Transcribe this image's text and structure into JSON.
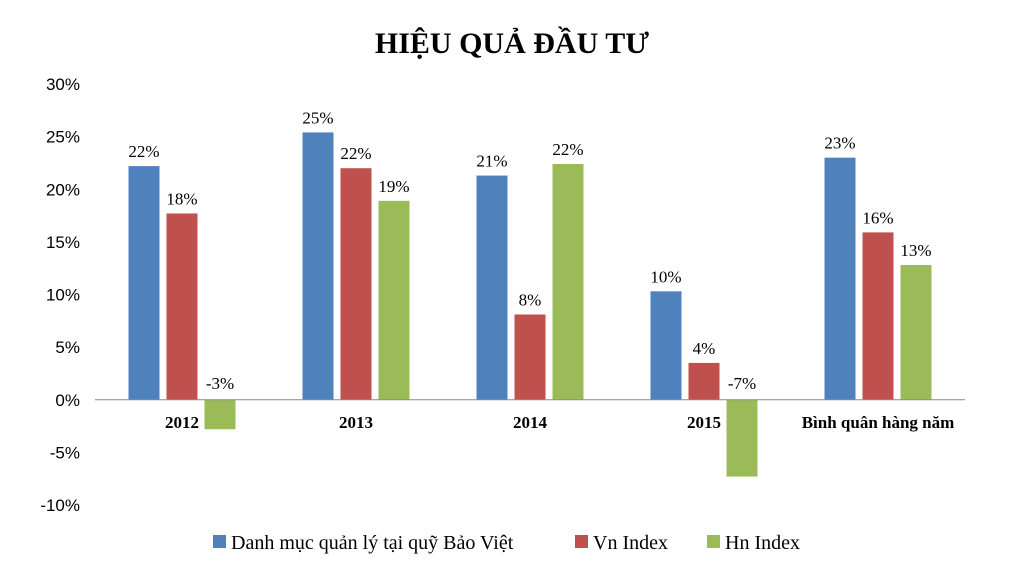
{
  "chart_data": {
    "type": "bar",
    "title": "HIỆU QUẢ ĐẦU TƯ",
    "categories": [
      "2012",
      "2013",
      "2014",
      "2015",
      "Bình quân hàng năm"
    ],
    "series": [
      {
        "name": "Danh mục quản lý tại quỹ Bảo Việt",
        "color": "#4F81BD",
        "values": [
          22.2,
          25.4,
          21.3,
          10.3,
          23.0
        ],
        "labels": [
          "22%",
          "25%",
          "21%",
          "10%",
          "23%"
        ]
      },
      {
        "name": "Vn Index",
        "color": "#C0504D",
        "values": [
          17.7,
          22.0,
          8.1,
          3.5,
          15.9
        ],
        "labels": [
          "18%",
          "22%",
          "8%",
          "4%",
          "16%"
        ]
      },
      {
        "name": "Hn Index",
        "color": "#9BBB59",
        "values": [
          -2.8,
          18.9,
          22.4,
          -7.3,
          12.8
        ],
        "labels": [
          "-3%",
          "19%",
          "22%",
          "-7%",
          "13%"
        ]
      }
    ],
    "ylim": [
      -10,
      30
    ],
    "yticks": [
      30,
      25,
      20,
      15,
      10,
      5,
      0,
      -5,
      -10
    ],
    "ytick_labels": [
      "30%",
      "25%",
      "20%",
      "15%",
      "10%",
      "5%",
      "0%",
      "-5%",
      "-10%"
    ],
    "xlabel": "",
    "ylabel": "",
    "grid": false,
    "legend_position": "bottom"
  }
}
